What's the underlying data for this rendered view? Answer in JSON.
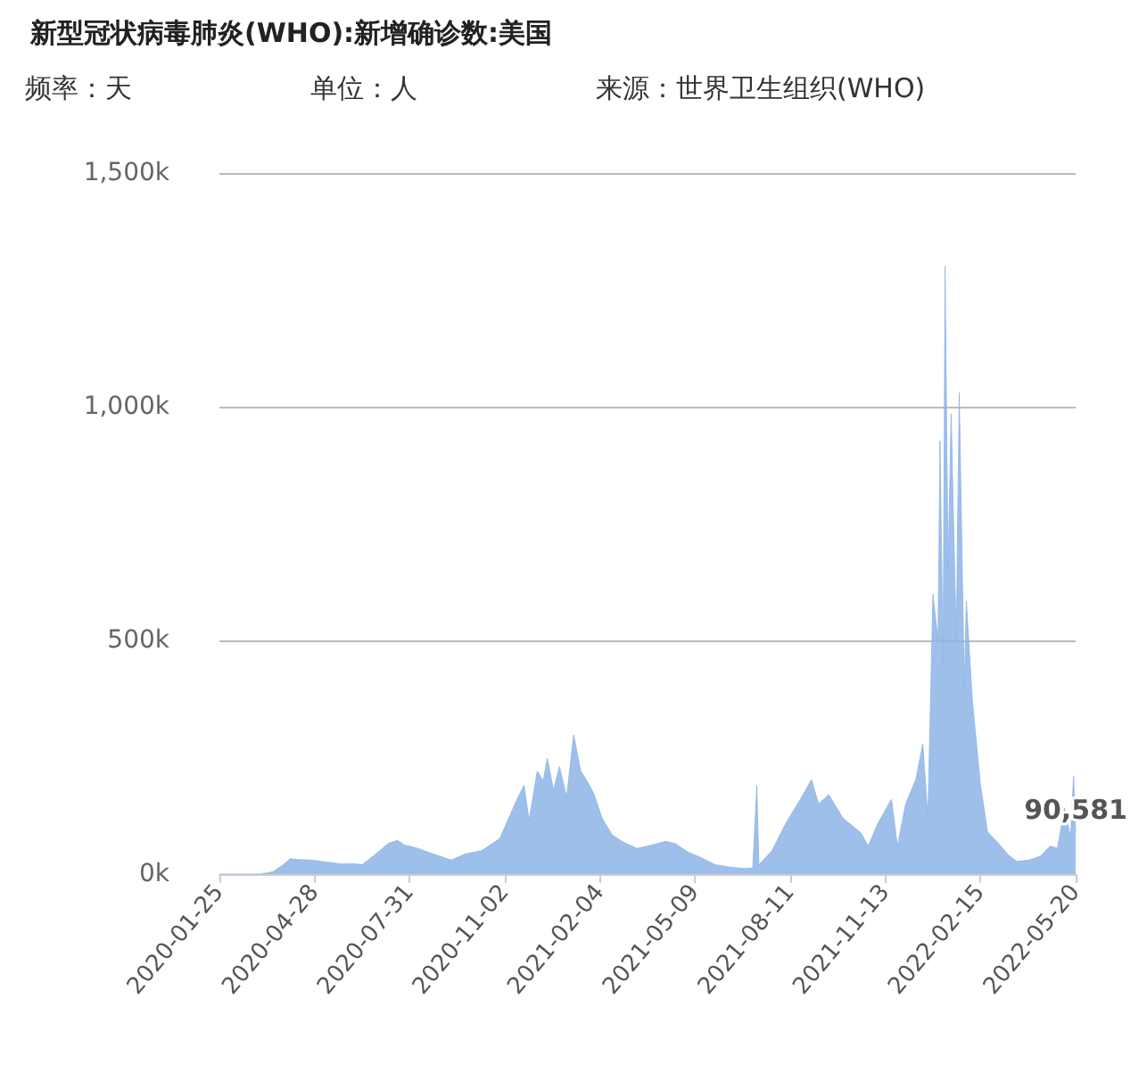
{
  "chart_data": {
    "type": "area",
    "title": "新型冠状病毒肺炎(WHO):新增确诊数:美国",
    "annotations": [
      "频率：天",
      "单位：人",
      "来源：世界卫生组织(WHO)"
    ],
    "x": [
      "2020-01-25",
      "2020-02-15",
      "2020-03-05",
      "2020-03-18",
      "2020-03-28",
      "2020-04-04",
      "2020-04-11",
      "2020-04-25",
      "2020-05-09",
      "2020-05-23",
      "2020-06-06",
      "2020-06-14",
      "2020-06-27",
      "2020-07-10",
      "2020-07-19",
      "2020-07-26",
      "2020-08-08",
      "2020-08-22",
      "2020-09-10",
      "2020-09-24",
      "2020-10-10",
      "2020-10-28",
      "2020-11-07",
      "2020-11-14",
      "2020-11-21",
      "2020-11-26",
      "2020-12-04",
      "2020-12-10",
      "2020-12-14",
      "2020-12-20",
      "2020-12-26",
      "2021-01-02",
      "2021-01-09",
      "2021-01-16",
      "2021-01-22",
      "2021-01-29",
      "2021-02-06",
      "2021-02-16",
      "2021-02-27",
      "2021-03-13",
      "2021-03-27",
      "2021-04-10",
      "2021-04-20",
      "2021-05-01",
      "2021-05-15",
      "2021-05-29",
      "2021-06-12",
      "2021-06-26",
      "2021-07-05",
      "2021-07-09",
      "2021-07-11",
      "2021-07-24",
      "2021-08-07",
      "2021-08-21",
      "2021-09-01",
      "2021-09-08",
      "2021-09-18",
      "2021-10-02",
      "2021-10-20",
      "2021-10-27",
      "2021-11-06",
      "2021-11-19",
      "2021-11-25",
      "2021-12-03",
      "2021-12-13",
      "2021-12-20",
      "2021-12-25",
      "2021-12-30",
      "2022-01-04",
      "2022-01-06",
      "2022-01-09",
      "2022-01-11",
      "2022-01-14",
      "2022-01-17",
      "2022-01-22",
      "2022-01-25",
      "2022-01-30",
      "2022-02-01",
      "2022-02-07",
      "2022-02-15",
      "2022-02-22",
      "2022-03-05",
      "2022-03-15",
      "2022-03-23",
      "2022-04-04",
      "2022-04-15",
      "2022-04-25",
      "2022-05-02",
      "2022-05-09",
      "2022-05-15",
      "2022-05-18",
      "2022-05-20"
    ],
    "series": [
      {
        "color": "#8db4e6",
        "values": [
          0,
          0,
          0,
          5000,
          20000,
          33000,
          31000,
          30000,
          26000,
          22000,
          22000,
          20000,
          42000,
          66000,
          72000,
          62000,
          55000,
          44000,
          30000,
          43000,
          50000,
          76000,
          125000,
          160000,
          190000,
          115000,
          220000,
          200000,
          248000,
          180000,
          230000,
          165000,
          298000,
          220000,
          200000,
          172000,
          120000,
          84000,
          68000,
          55000,
          62000,
          70000,
          65000,
          48000,
          35000,
          20000,
          15000,
          12000,
          13000,
          190000,
          20000,
          50000,
          110000,
          160000,
          202000,
          150000,
          170000,
          120000,
          88000,
          60000,
          110000,
          160000,
          60000,
          150000,
          202000,
          279000,
          120000,
          599000,
          500000,
          927000,
          450000,
          1301000,
          650000,
          985000,
          500000,
          1030000,
          400000,
          584000,
          370000,
          190000,
          90000,
          65000,
          40000,
          27000,
          30000,
          38000,
          60000,
          55000,
          141000,
          80000,
          210000,
          90581
        ],
        "value_labels": [
          null,
          null,
          null,
          null,
          null,
          null,
          null,
          null,
          null,
          null,
          null,
          null,
          null,
          null,
          null,
          null,
          null,
          null,
          null,
          null,
          null,
          null,
          null,
          null,
          null,
          null,
          null,
          null,
          null,
          null,
          null,
          null,
          null,
          null,
          null,
          null,
          null,
          null,
          null,
          null,
          null,
          null,
          null,
          null,
          null,
          null,
          null,
          null,
          null,
          null,
          null,
          null,
          null,
          null,
          null,
          null,
          null,
          null,
          null,
          null,
          null,
          null,
          null,
          null,
          null,
          null,
          null,
          null,
          null,
          null,
          null,
          null,
          null,
          null,
          null,
          null,
          null,
          null,
          null,
          null,
          null,
          null,
          null,
          null,
          null,
          null,
          null,
          null,
          null,
          null,
          null,
          "90,581"
        ]
      }
    ],
    "xlim": [
      "2020-01-25",
      "2022-05-20"
    ],
    "xticks": [
      "2020-01-25",
      "2020-04-28",
      "2020-07-31",
      "2020-11-02",
      "2021-02-04",
      "2021-05-09",
      "2021-08-11",
      "2021-11-13",
      "2022-02-15",
      "2022-05-20"
    ],
    "ylim": [
      0,
      1500000
    ],
    "yticks": [
      {
        "value": 0,
        "label": "0k"
      },
      {
        "value": 500000,
        "label": "500k"
      },
      {
        "value": 1000000,
        "label": "1,000k"
      },
      {
        "value": 1500000,
        "label": "1,500k"
      }
    ],
    "grid": "y"
  }
}
